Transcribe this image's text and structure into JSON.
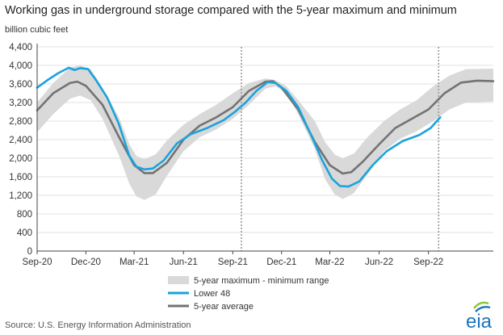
{
  "title": "Working gas in underground  storage compared with the 5-year maximum and minimum",
  "unit_label": "billion cubic feet",
  "source": "Source:  U.S. Energy Information Administration",
  "logo_text": "eia",
  "colors": {
    "range_fill": "#d9d9d9",
    "lower48": "#1ba3dc",
    "avg": "#737373",
    "dotted_line": "#9a9a9a",
    "logo_blue": "#1c75bc",
    "logo_green": "#8dc63f"
  },
  "chart_data": {
    "type": "line",
    "ylim": [
      0,
      4400
    ],
    "yticks": [
      "0",
      "400",
      "800",
      "1,200",
      "1,600",
      "2,000",
      "2,400",
      "2,800",
      "3,200",
      "3,600",
      "4,000",
      "4,400"
    ],
    "xlim": [
      "2020-09-01",
      "2022-12-31"
    ],
    "xticks": [
      {
        "date": "2020-09-01",
        "label": "Sep-20"
      },
      {
        "date": "2020-12-01",
        "label": "Dec-20"
      },
      {
        "date": "2021-03-01",
        "label": "Mar-21"
      },
      {
        "date": "2021-06-01",
        "label": "Jun-21"
      },
      {
        "date": "2021-09-01",
        "label": "Sep-21"
      },
      {
        "date": "2021-12-01",
        "label": "Dec-21"
      },
      {
        "date": "2022-03-01",
        "label": "Mar-22"
      },
      {
        "date": "2022-06-01",
        "label": "Jun-22"
      },
      {
        "date": "2022-09-01",
        "label": "Sep-22"
      }
    ],
    "vertical_markers": [
      "2021-09-17",
      "2022-09-20"
    ],
    "legend": {
      "range": "5-year maximum - minimum range",
      "lower48": "Lower 48",
      "avg": "5-year average"
    },
    "range_max": [
      {
        "x": "2020-09-01",
        "y": 3200
      },
      {
        "x": "2020-10-01",
        "y": 3620
      },
      {
        "x": "2020-11-01",
        "y": 3950
      },
      {
        "x": "2020-11-20",
        "y": 4000
      },
      {
        "x": "2020-12-10",
        "y": 3920
      },
      {
        "x": "2021-01-01",
        "y": 3520
      },
      {
        "x": "2021-02-01",
        "y": 2870
      },
      {
        "x": "2021-02-20",
        "y": 2300
      },
      {
        "x": "2021-03-05",
        "y": 2050
      },
      {
        "x": "2021-03-20",
        "y": 1980
      },
      {
        "x": "2021-04-10",
        "y": 2080
      },
      {
        "x": "2021-05-01",
        "y": 2380
      },
      {
        "x": "2021-06-01",
        "y": 2720
      },
      {
        "x": "2021-07-01",
        "y": 2950
      },
      {
        "x": "2021-08-01",
        "y": 3150
      },
      {
        "x": "2021-09-01",
        "y": 3400
      },
      {
        "x": "2021-10-01",
        "y": 3620
      },
      {
        "x": "2021-11-01",
        "y": 3720
      },
      {
        "x": "2021-11-20",
        "y": 3680
      },
      {
        "x": "2021-12-10",
        "y": 3550
      },
      {
        "x": "2022-01-01",
        "y": 3250
      },
      {
        "x": "2022-02-01",
        "y": 2800
      },
      {
        "x": "2022-02-20",
        "y": 2350
      },
      {
        "x": "2022-03-10",
        "y": 2080
      },
      {
        "x": "2022-03-25",
        "y": 2000
      },
      {
        "x": "2022-04-15",
        "y": 2100
      },
      {
        "x": "2022-05-10",
        "y": 2450
      },
      {
        "x": "2022-06-10",
        "y": 2800
      },
      {
        "x": "2022-07-10",
        "y": 3050
      },
      {
        "x": "2022-08-10",
        "y": 3250
      },
      {
        "x": "2022-09-10",
        "y": 3550
      },
      {
        "x": "2022-10-10",
        "y": 3780
      },
      {
        "x": "2022-11-10",
        "y": 3920
      },
      {
        "x": "2022-12-31",
        "y": 3930
      }
    ],
    "range_min": [
      {
        "x": "2020-09-01",
        "y": 2560
      },
      {
        "x": "2020-10-01",
        "y": 2950
      },
      {
        "x": "2020-11-01",
        "y": 3280
      },
      {
        "x": "2020-11-20",
        "y": 3350
      },
      {
        "x": "2020-12-10",
        "y": 3250
      },
      {
        "x": "2021-01-01",
        "y": 2850
      },
      {
        "x": "2021-02-01",
        "y": 2050
      },
      {
        "x": "2021-02-20",
        "y": 1450
      },
      {
        "x": "2021-03-05",
        "y": 1180
      },
      {
        "x": "2021-03-20",
        "y": 1100
      },
      {
        "x": "2021-04-10",
        "y": 1220
      },
      {
        "x": "2021-05-01",
        "y": 1620
      },
      {
        "x": "2021-06-01",
        "y": 2150
      },
      {
        "x": "2021-07-01",
        "y": 2450
      },
      {
        "x": "2021-08-01",
        "y": 2620
      },
      {
        "x": "2021-09-01",
        "y": 2850
      },
      {
        "x": "2021-10-01",
        "y": 3150
      },
      {
        "x": "2021-11-01",
        "y": 3500
      },
      {
        "x": "2021-11-20",
        "y": 3550
      },
      {
        "x": "2021-12-10",
        "y": 3400
      },
      {
        "x": "2022-01-01",
        "y": 2950
      },
      {
        "x": "2022-02-01",
        "y": 2200
      },
      {
        "x": "2022-02-20",
        "y": 1550
      },
      {
        "x": "2022-03-10",
        "y": 1220
      },
      {
        "x": "2022-03-25",
        "y": 1120
      },
      {
        "x": "2022-04-15",
        "y": 1250
      },
      {
        "x": "2022-05-10",
        "y": 1650
      },
      {
        "x": "2022-06-10",
        "y": 2150
      },
      {
        "x": "2022-07-10",
        "y": 2420
      },
      {
        "x": "2022-08-10",
        "y": 2580
      },
      {
        "x": "2022-09-10",
        "y": 2800
      },
      {
        "x": "2022-10-10",
        "y": 3050
      },
      {
        "x": "2022-11-10",
        "y": 3200
      },
      {
        "x": "2022-12-31",
        "y": 3220
      }
    ],
    "series": [
      {
        "name": "Lower 48",
        "key": "lower48",
        "points": [
          {
            "x": "2020-09-01",
            "y": 3520
          },
          {
            "x": "2020-09-20",
            "y": 3680
          },
          {
            "x": "2020-10-10",
            "y": 3830
          },
          {
            "x": "2020-10-30",
            "y": 3950
          },
          {
            "x": "2020-11-10",
            "y": 3900
          },
          {
            "x": "2020-11-20",
            "y": 3940
          },
          {
            "x": "2020-12-05",
            "y": 3920
          },
          {
            "x": "2020-12-20",
            "y": 3680
          },
          {
            "x": "2021-01-10",
            "y": 3300
          },
          {
            "x": "2021-01-31",
            "y": 2750
          },
          {
            "x": "2021-02-20",
            "y": 2050
          },
          {
            "x": "2021-03-05",
            "y": 1820
          },
          {
            "x": "2021-03-20",
            "y": 1760
          },
          {
            "x": "2021-04-05",
            "y": 1780
          },
          {
            "x": "2021-04-25",
            "y": 1950
          },
          {
            "x": "2021-05-20",
            "y": 2320
          },
          {
            "x": "2021-06-15",
            "y": 2520
          },
          {
            "x": "2021-07-15",
            "y": 2650
          },
          {
            "x": "2021-08-15",
            "y": 2820
          },
          {
            "x": "2021-09-05",
            "y": 3000
          },
          {
            "x": "2021-09-25",
            "y": 3200
          },
          {
            "x": "2021-10-15",
            "y": 3450
          },
          {
            "x": "2021-11-05",
            "y": 3640
          },
          {
            "x": "2021-11-20",
            "y": 3620
          },
          {
            "x": "2021-12-10",
            "y": 3450
          },
          {
            "x": "2022-01-01",
            "y": 3100
          },
          {
            "x": "2022-01-25",
            "y": 2500
          },
          {
            "x": "2022-02-15",
            "y": 1950
          },
          {
            "x": "2022-03-05",
            "y": 1560
          },
          {
            "x": "2022-03-20",
            "y": 1400
          },
          {
            "x": "2022-04-05",
            "y": 1390
          },
          {
            "x": "2022-04-25",
            "y": 1500
          },
          {
            "x": "2022-05-20",
            "y": 1850
          },
          {
            "x": "2022-06-15",
            "y": 2150
          },
          {
            "x": "2022-07-15",
            "y": 2370
          },
          {
            "x": "2022-08-15",
            "y": 2500
          },
          {
            "x": "2022-09-05",
            "y": 2650
          },
          {
            "x": "2022-09-23",
            "y": 2880
          }
        ]
      },
      {
        "name": "5-year average",
        "key": "avg",
        "points": [
          {
            "x": "2020-09-01",
            "y": 3030
          },
          {
            "x": "2020-10-01",
            "y": 3400
          },
          {
            "x": "2020-11-01",
            "y": 3620
          },
          {
            "x": "2020-11-15",
            "y": 3650
          },
          {
            "x": "2020-12-01",
            "y": 3560
          },
          {
            "x": "2021-01-01",
            "y": 3150
          },
          {
            "x": "2021-02-01",
            "y": 2450
          },
          {
            "x": "2021-03-01",
            "y": 1850
          },
          {
            "x": "2021-03-20",
            "y": 1680
          },
          {
            "x": "2021-04-05",
            "y": 1680
          },
          {
            "x": "2021-05-01",
            "y": 1900
          },
          {
            "x": "2021-06-01",
            "y": 2400
          },
          {
            "x": "2021-07-01",
            "y": 2700
          },
          {
            "x": "2021-08-01",
            "y": 2880
          },
          {
            "x": "2021-09-01",
            "y": 3100
          },
          {
            "x": "2021-10-01",
            "y": 3450
          },
          {
            "x": "2021-11-01",
            "y": 3650
          },
          {
            "x": "2021-11-15",
            "y": 3660
          },
          {
            "x": "2021-12-01",
            "y": 3520
          },
          {
            "x": "2022-01-01",
            "y": 3050
          },
          {
            "x": "2022-02-01",
            "y": 2350
          },
          {
            "x": "2022-03-01",
            "y": 1850
          },
          {
            "x": "2022-03-25",
            "y": 1670
          },
          {
            "x": "2022-04-10",
            "y": 1700
          },
          {
            "x": "2022-05-01",
            "y": 1920
          },
          {
            "x": "2022-06-01",
            "y": 2300
          },
          {
            "x": "2022-07-01",
            "y": 2650
          },
          {
            "x": "2022-08-01",
            "y": 2850
          },
          {
            "x": "2022-09-01",
            "y": 3050
          },
          {
            "x": "2022-10-01",
            "y": 3400
          },
          {
            "x": "2022-11-01",
            "y": 3630
          },
          {
            "x": "2022-12-01",
            "y": 3670
          },
          {
            "x": "2022-12-31",
            "y": 3660
          }
        ]
      }
    ]
  }
}
